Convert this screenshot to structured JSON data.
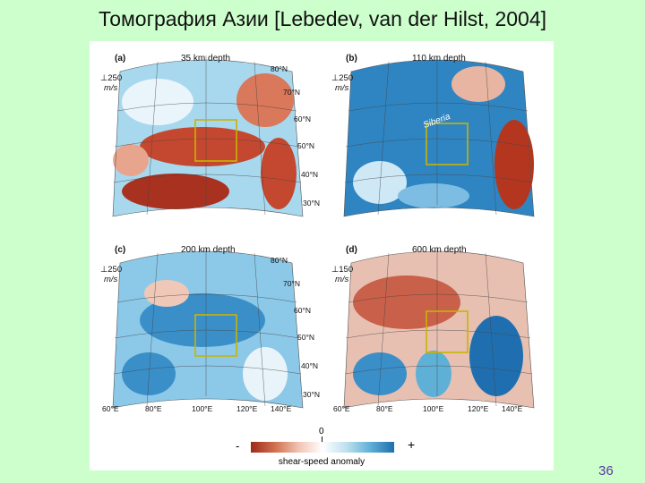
{
  "slide": {
    "title": "Томография Азии [Lebedev, van der Hilst, 2004]",
    "page_number": "36"
  },
  "panels": [
    {
      "letter": "(a)",
      "depth": "35 km depth",
      "scale_value": "⊥250",
      "scale_unit": "m/s"
    },
    {
      "letter": "(b)",
      "depth": "110 km depth",
      "scale_value": "⊥250",
      "scale_unit": "m/s",
      "annotation": "Siberia"
    },
    {
      "letter": "(c)",
      "depth": "200 km depth",
      "scale_value": "⊥250",
      "scale_unit": "m/s"
    },
    {
      "letter": "(d)",
      "depth": "600 km depth",
      "scale_value": "⊥150",
      "scale_unit": "m/s"
    }
  ],
  "latitudes": [
    "80°N",
    "70°N",
    "60°N",
    "50°N",
    "40°N",
    "30°N"
  ],
  "longitudes": [
    "60°E",
    "80°E",
    "100°E",
    "120°E",
    "140°E"
  ],
  "colorbar": {
    "minus": "-",
    "zero": "0",
    "plus": "+",
    "caption": "shear-speed anomaly",
    "colors": {
      "slow": "#b5361f",
      "neutral": "#ffffff",
      "fast": "#2a7bbd"
    }
  }
}
